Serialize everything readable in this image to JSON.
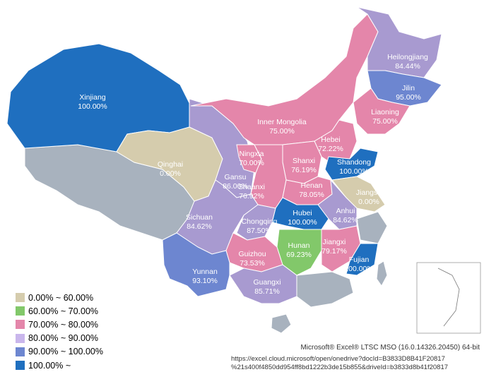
{
  "colors": {
    "bin1": "#d5ccad",
    "bin2": "#82c86a",
    "bin3": "#e486aa",
    "bin4": "#a89ad0",
    "bin5": "#6d86d0",
    "bin6": "#1f6fbf",
    "other": "#a8b2be",
    "ocean": "#ffffff"
  },
  "legend": [
    {
      "label": "0.00% ~ 60.00%",
      "color": "#d5ccad"
    },
    {
      "label": "60.00% ~ 70.00%",
      "color": "#82c86a"
    },
    {
      "label": "70.00% ~ 80.00%",
      "color": "#e486aa"
    },
    {
      "label": "80.00% ~ 90.00%",
      "color": "#c9b6ec"
    },
    {
      "label": "90.00% ~ 100.00%",
      "color": "#6d86d0"
    },
    {
      "label": "100.00% ~",
      "color": "#1f6fbf"
    }
  ],
  "regions": [
    {
      "name": "Xinjiang",
      "value": "100.00%"
    },
    {
      "name": "Heilongjiang",
      "value": "84.44%"
    },
    {
      "name": "Jilin",
      "value": "95.00%"
    },
    {
      "name": "Liaoning",
      "value": "75.00%"
    },
    {
      "name": "Inner Mongolia",
      "value": "75.00%"
    },
    {
      "name": "Hebei",
      "value": "72.22%"
    },
    {
      "name": "Qinghai",
      "value": "0.00%"
    },
    {
      "name": "Ningxia",
      "value": "70.00%"
    },
    {
      "name": "Shanxi",
      "value": "76.19%"
    },
    {
      "name": "Shandong",
      "value": "100.00%"
    },
    {
      "name": "Gansu",
      "value": "86.00%"
    },
    {
      "name": "Shaanxi",
      "value": "76.92%"
    },
    {
      "name": "Henan",
      "value": "78.05%"
    },
    {
      "name": "Jiangsu",
      "value": "0.00%"
    },
    {
      "name": "Hubei",
      "value": "100.00%"
    },
    {
      "name": "Anhui",
      "value": "84.62%"
    },
    {
      "name": "Sichuan",
      "value": "84.62%"
    },
    {
      "name": "Chongqing",
      "value": "87.50%"
    },
    {
      "name": "Jiangxi",
      "value": "79.17%"
    },
    {
      "name": "Hunan",
      "value": "69.23%"
    },
    {
      "name": "Guizhou",
      "value": "73.53%"
    },
    {
      "name": "Fujian",
      "value": "100.00%"
    },
    {
      "name": "Yunnan",
      "value": "93.10%"
    },
    {
      "name": "Guangxi",
      "value": "85.71%"
    }
  ],
  "footer": {
    "credit": "Microsoft® Excel® LTSC MSO (16.0.14326.20450) 64-bit",
    "url_line1": "https://excel.cloud.microsoft/open/onedrive?docId=B3833D8B41F20817",
    "url_line2": "%21s400f4850dd954ff8bd1222b3de15b855&driveId=b3833d8b41f20817"
  }
}
